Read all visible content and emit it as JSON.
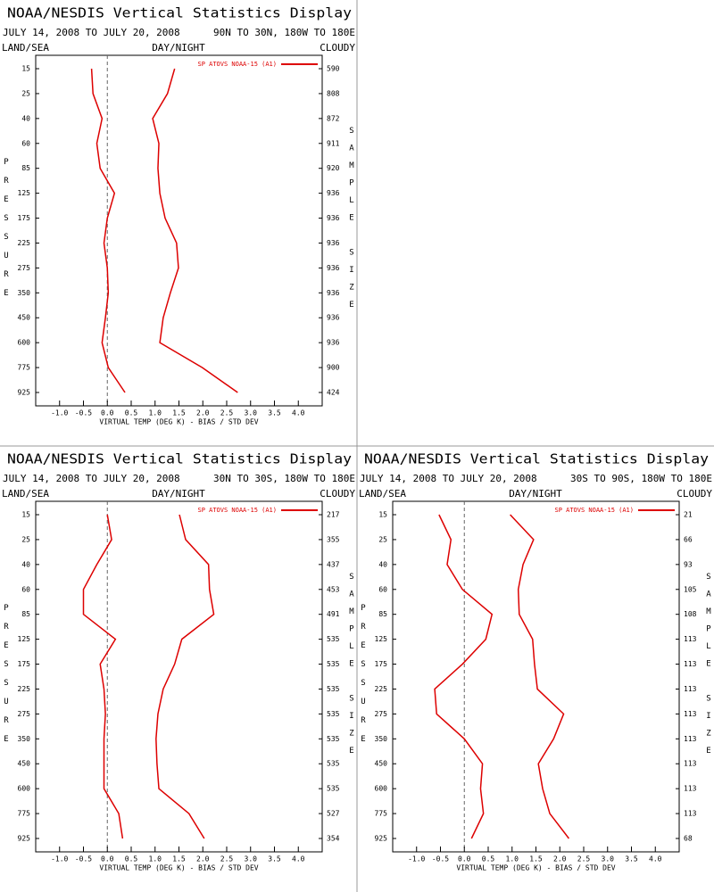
{
  "chart_data": [
    {
      "type": "line",
      "title": "NOAA/NESDIS Vertical Statistics Display",
      "subtitle": "JULY 14, 2008 TO JULY 20, 2008",
      "region": "90N TO 30N, 180W TO 180E",
      "corner_labels": [
        "LAND/SEA",
        "DAY/NIGHT",
        "CLOUDY"
      ],
      "y_label": "PRESSURE",
      "y2_label": "SAMPLE SIZE",
      "x_label": "VIRTUAL TEMP (DEG K) - BIAS / STD DEV",
      "legend": "SP ATOVS NOAA-15 (A1)",
      "categories": [
        "15",
        "25",
        "40",
        "60",
        "85",
        "125",
        "175",
        "225",
        "275",
        "350",
        "450",
        "600",
        "775",
        "925"
      ],
      "sample_size": [
        590,
        808,
        872,
        911,
        920,
        936,
        936,
        936,
        936,
        936,
        936,
        936,
        900,
        424
      ],
      "series": [
        {
          "color": "#dd0000",
          "values": [
            -0.33,
            -0.3,
            -0.11,
            -0.22,
            -0.15,
            0.15,
            0.0,
            -0.07,
            0.0,
            0.02,
            -0.04,
            -0.11,
            0.02,
            0.37
          ]
        },
        {
          "color": "#dd0000",
          "values": [
            1.41,
            1.26,
            0.95,
            1.08,
            1.06,
            1.1,
            1.21,
            1.45,
            1.49,
            1.32,
            1.17,
            1.1,
            1.99,
            2.73
          ]
        }
      ],
      "xlim": [
        -1.5,
        4.5
      ],
      "xticks": [
        {
          "value": -1,
          "label": "-1.0"
        },
        -0.5,
        {
          "value": 0,
          "label": "0.0"
        },
        0.5,
        {
          "value": 1,
          "label": "1.0"
        },
        1.5,
        {
          "value": 2,
          "label": "2.0"
        },
        2.5,
        {
          "value": 3,
          "label": "3.0"
        },
        3.5,
        {
          "value": 4,
          "label": "4.0"
        }
      ],
      "zero_line": true
    },
    {
      "type": "line",
      "title": "NOAA/NESDIS Vertical Statistics Display",
      "subtitle": "JULY 14, 2008 TO JULY 20, 2008",
      "region": "30N TO 30S, 180W TO 180E",
      "corner_labels": [
        "LAND/SEA",
        "DAY/NIGHT",
        "CLOUDY"
      ],
      "y_label": "PRESSURE",
      "y2_label": "SAMPLE SIZE",
      "x_label": "VIRTUAL TEMP (DEG K) - BIAS / STD DEV",
      "legend": "SP ATOVS NOAA-15 (A1)",
      "categories": [
        "15",
        "25",
        "40",
        "60",
        "85",
        "125",
        "175",
        "225",
        "275",
        "350",
        "450",
        "600",
        "775",
        "925"
      ],
      "sample_size": [
        217,
        355,
        437,
        453,
        491,
        535,
        535,
        535,
        535,
        535,
        535,
        535,
        527,
        354
      ],
      "series": [
        {
          "color": "#dd0000",
          "values": [
            0.0,
            0.09,
            -0.22,
            -0.5,
            -0.5,
            0.17,
            -0.15,
            -0.07,
            -0.04,
            -0.07,
            -0.07,
            -0.07,
            0.24,
            0.32
          ]
        },
        {
          "color": "#dd0000",
          "values": [
            1.51,
            1.64,
            2.12,
            2.14,
            2.23,
            1.56,
            1.41,
            1.17,
            1.06,
            1.02,
            1.04,
            1.08,
            1.71,
            2.03
          ]
        }
      ],
      "xlim": [
        -1.5,
        4.5
      ],
      "xticks": [
        {
          "value": -1,
          "label": "-1.0"
        },
        -0.5,
        {
          "value": 0,
          "label": "0.0"
        },
        0.5,
        {
          "value": 1,
          "label": "1.0"
        },
        1.5,
        {
          "value": 2,
          "label": "2.0"
        },
        2.5,
        {
          "value": 3,
          "label": "3.0"
        },
        3.5,
        {
          "value": 4,
          "label": "4.0"
        }
      ],
      "zero_line": true
    },
    {
      "type": "line",
      "title": "NOAA/NESDIS Vertical Statistics Display",
      "subtitle": "JULY 14, 2008 TO JULY 20, 2008",
      "region": "30S TO 90S, 180W TO 180E",
      "corner_labels": [
        "LAND/SEA",
        "DAY/NIGHT",
        "CLOUDY"
      ],
      "y_label": "PRESSURE",
      "y2_label": "SAMPLE SIZE",
      "x_label": "VIRTUAL TEMP (DEG K) - BIAS / STD DEV",
      "legend": "SP ATOVS NOAA-15 (A1)",
      "categories": [
        "15",
        "25",
        "40",
        "60",
        "85",
        "125",
        "175",
        "225",
        "275",
        "350",
        "450",
        "600",
        "775",
        "925"
      ],
      "sample_size": [
        21,
        66,
        93,
        105,
        108,
        113,
        113,
        113,
        113,
        113,
        113,
        113,
        113,
        68
      ],
      "series": [
        {
          "color": "#dd0000",
          "values": [
            -0.53,
            -0.28,
            -0.36,
            -0.04,
            0.58,
            0.45,
            -0.04,
            -0.62,
            -0.58,
            0.0,
            0.38,
            0.34,
            0.4,
            0.15
          ]
        },
        {
          "color": "#dd0000",
          "values": [
            0.96,
            1.45,
            1.23,
            1.13,
            1.15,
            1.43,
            1.47,
            1.53,
            2.08,
            1.87,
            1.55,
            1.64,
            1.79,
            2.19
          ]
        }
      ],
      "xlim": [
        -1.5,
        4.5
      ],
      "xticks": [
        {
          "value": -1,
          "label": "-1.0"
        },
        -0.5,
        {
          "value": 0,
          "label": "0.0"
        },
        0.5,
        {
          "value": 1,
          "label": "1.0"
        },
        1.5,
        {
          "value": 2,
          "label": "2.0"
        },
        2.5,
        {
          "value": 3,
          "label": "3.0"
        },
        3.5,
        {
          "value": 4,
          "label": "4.0"
        }
      ],
      "zero_line": true
    }
  ]
}
